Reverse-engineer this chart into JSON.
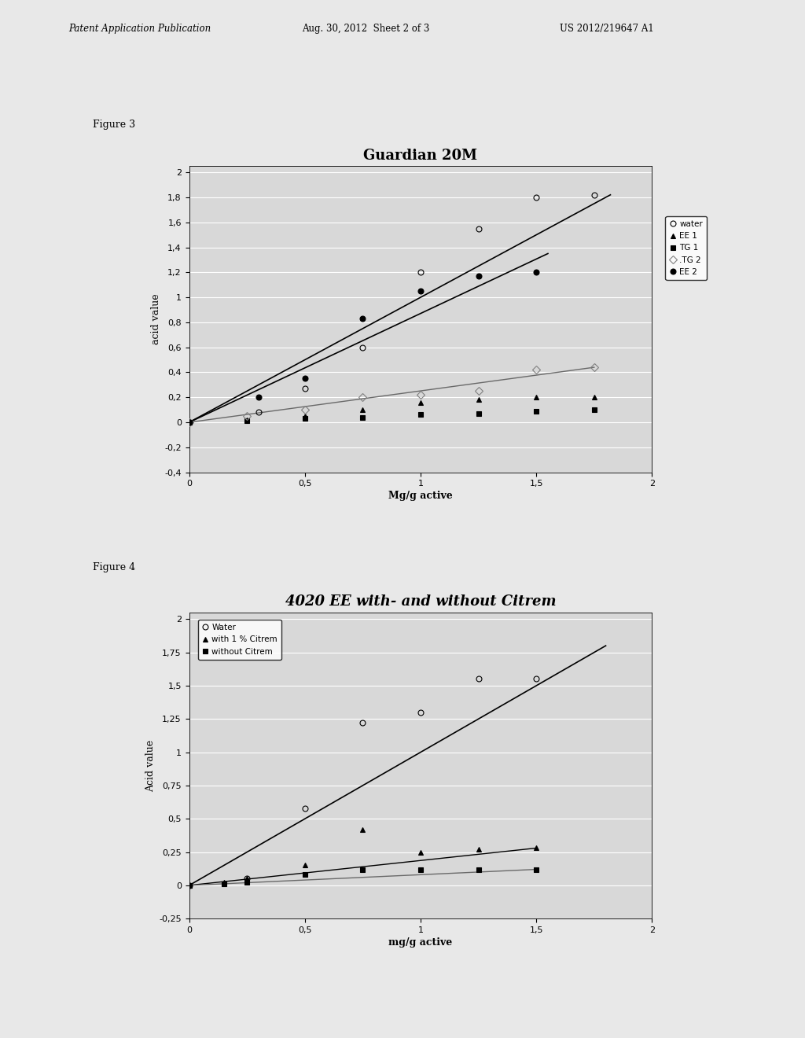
{
  "fig3": {
    "title": "Guardian 20M",
    "xlabel": "Mg/g active",
    "ylabel": "acid value",
    "xlim": [
      0,
      2
    ],
    "ylim": [
      -0.4,
      2.05
    ],
    "yticks": [
      -0.4,
      -0.2,
      0,
      0.2,
      0.4,
      0.6,
      0.8,
      1.0,
      1.2,
      1.4,
      1.6,
      1.8,
      2.0
    ],
    "xticks": [
      0,
      0.5,
      1,
      1.5,
      2
    ],
    "series": {
      "water": {
        "x": [
          0,
          0.3,
          0.5,
          0.75,
          1.0,
          1.25,
          1.5,
          1.75
        ],
        "y": [
          0,
          0.08,
          0.27,
          0.6,
          1.2,
          1.55,
          1.8,
          1.82
        ],
        "marker": "o",
        "fillstyle": "none",
        "color": "black",
        "ms": 5,
        "label": "water"
      },
      "EE1": {
        "x": [
          0,
          0.25,
          0.5,
          0.75,
          1.0,
          1.25,
          1.5,
          1.75
        ],
        "y": [
          0,
          0.02,
          0.05,
          0.1,
          0.16,
          0.18,
          0.2,
          0.2
        ],
        "marker": "^",
        "fillstyle": "full",
        "color": "black",
        "ms": 5,
        "label": "EE 1"
      },
      "TG1": {
        "x": [
          0,
          0.25,
          0.5,
          0.75,
          1.0,
          1.25,
          1.5,
          1.75
        ],
        "y": [
          0,
          0.01,
          0.03,
          0.04,
          0.06,
          0.07,
          0.09,
          0.1
        ],
        "marker": "s",
        "fillstyle": "full",
        "color": "black",
        "ms": 5,
        "label": "TG 1"
      },
      "TG2": {
        "x": [
          0,
          0.25,
          0.5,
          0.75,
          1.0,
          1.25,
          1.5,
          1.75
        ],
        "y": [
          0,
          0.05,
          0.1,
          0.2,
          0.22,
          0.25,
          0.42,
          0.44
        ],
        "marker": "D",
        "fillstyle": "none",
        "color": "gray",
        "ms": 5,
        "label": ".TG 2"
      },
      "EE2": {
        "x": [
          0,
          0.3,
          0.5,
          0.75,
          1.0,
          1.25,
          1.5
        ],
        "y": [
          0,
          0.2,
          0.35,
          0.83,
          1.05,
          1.17,
          1.2
        ],
        "marker": "o",
        "fillstyle": "full",
        "color": "black",
        "ms": 5,
        "label": "EE 2"
      }
    },
    "trendlines": {
      "water": {
        "x": [
          0,
          1.82
        ],
        "y": [
          0.0,
          1.82
        ]
      },
      "EE2": {
        "x": [
          0.0,
          1.55
        ],
        "y": [
          0.0,
          1.35
        ]
      },
      "TG2": {
        "x": [
          0.0,
          1.75
        ],
        "y": [
          0.0,
          0.44
        ]
      }
    }
  },
  "fig4": {
    "title": "4020 EE with- and without Citrem",
    "xlabel": "mg/g acti ve",
    "ylabel": "Acid value",
    "xlim": [
      0,
      2
    ],
    "ylim": [
      -0.25,
      2.05
    ],
    "yticks": [
      -0.25,
      0,
      0.25,
      0.5,
      0.75,
      1.0,
      1.25,
      1.5,
      1.75,
      2.0
    ],
    "xticks": [
      0,
      0.5,
      1,
      1.5,
      2
    ],
    "series": {
      "water": {
        "x": [
          0,
          0.25,
          0.5,
          0.75,
          1.0,
          1.25,
          1.5
        ],
        "y": [
          0,
          0.05,
          0.58,
          1.22,
          1.3,
          1.55,
          1.55
        ],
        "marker": "o",
        "fillstyle": "none",
        "color": "black",
        "ms": 5,
        "label": "Water"
      },
      "with_citrem": {
        "x": [
          0,
          0.15,
          0.25,
          0.5,
          0.75,
          1.0,
          1.25,
          1.5
        ],
        "y": [
          0,
          0.02,
          0.05,
          0.15,
          0.42,
          0.25,
          0.27,
          0.28
        ],
        "marker": "^",
        "fillstyle": "full",
        "color": "black",
        "ms": 5,
        "label": "with 1 % Citrem"
      },
      "without_citrem": {
        "x": [
          0,
          0.15,
          0.25,
          0.5,
          0.75,
          1.0,
          1.25,
          1.5
        ],
        "y": [
          0,
          0.01,
          0.02,
          0.08,
          0.12,
          0.12,
          0.12,
          0.12
        ],
        "marker": "s",
        "fillstyle": "full",
        "color": "black",
        "ms": 5,
        "label": "without Citrem"
      }
    },
    "trendlines": {
      "water": {
        "x": [
          0.0,
          1.8
        ],
        "y": [
          0.0,
          1.8
        ]
      },
      "with_citrem": {
        "x": [
          0.0,
          1.5
        ],
        "y": [
          0.0,
          0.28
        ]
      },
      "without_citrem": {
        "x": [
          0.0,
          1.5
        ],
        "y": [
          0.0,
          0.12
        ]
      }
    }
  },
  "header_left": "Patent Application Publication",
  "header_mid": "Aug. 30, 2012  Sheet 2 of 3",
  "header_right": "US 2012/219647 A1",
  "fig3_label": "Figure 3",
  "fig4_label": "Figure 4",
  "bg_color": "#e8e8e8",
  "chart_bg": "#ffffff",
  "plot_bg": "#d8d8d8",
  "grid_color": "#ffffff"
}
